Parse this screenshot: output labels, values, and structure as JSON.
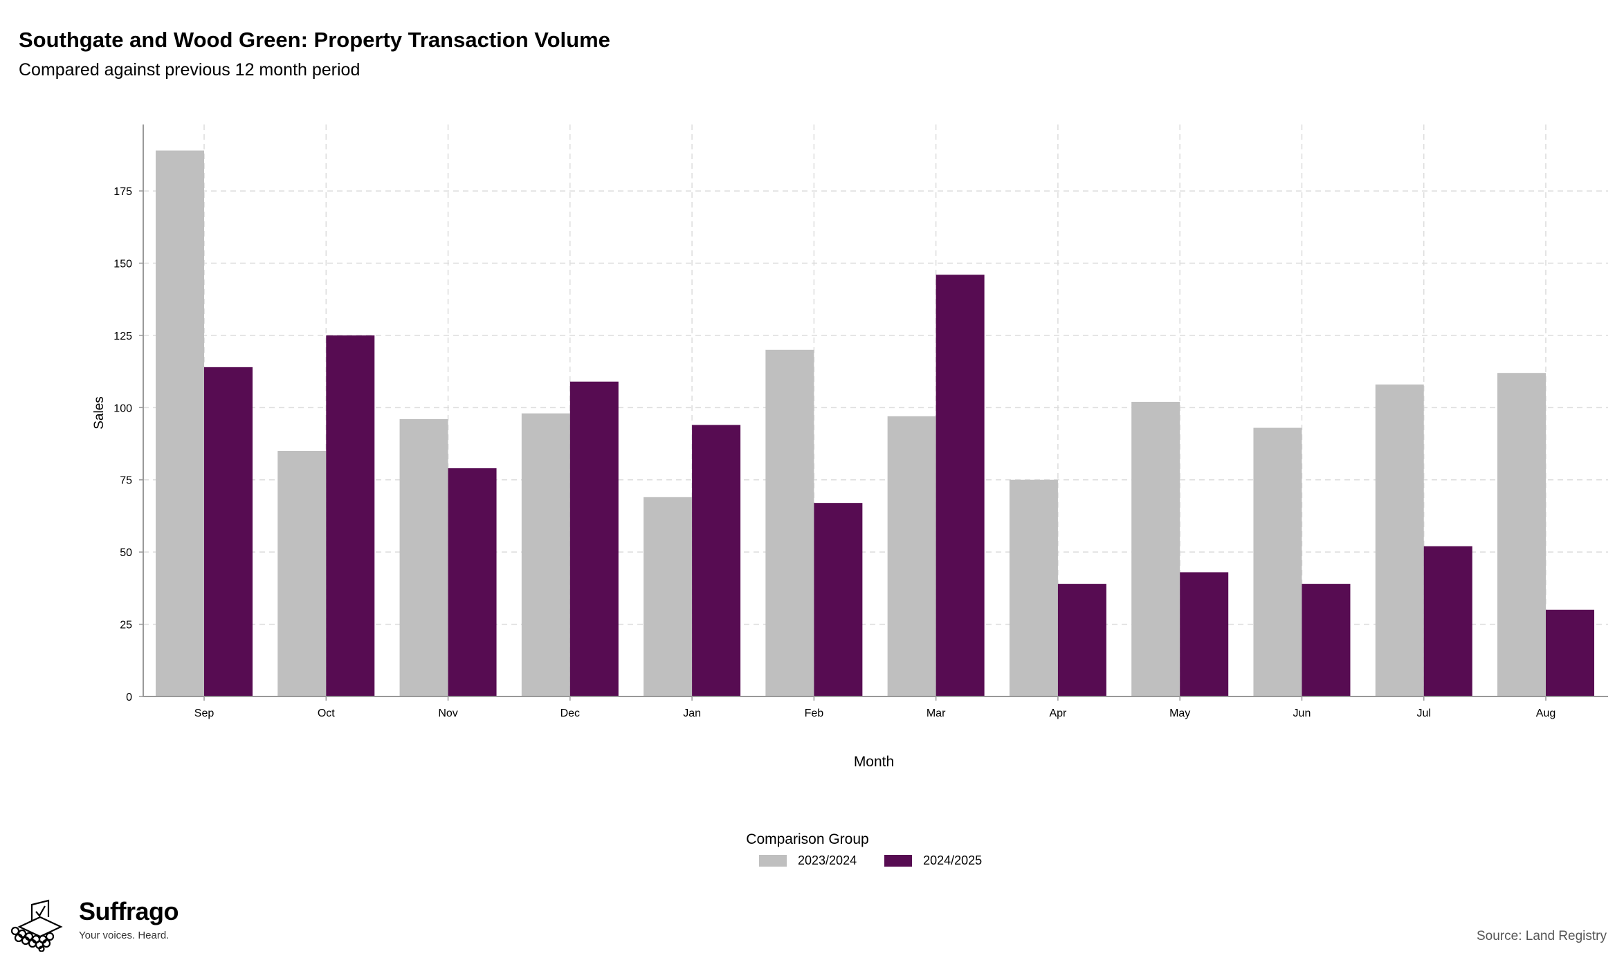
{
  "title": "Southgate and Wood Green: Property Transaction Volume",
  "subtitle": "Compared against previous 12 month period",
  "chart_data": {
    "type": "bar",
    "categories": [
      "Sep",
      "Oct",
      "Nov",
      "Dec",
      "Jan",
      "Feb",
      "Mar",
      "Apr",
      "May",
      "Jun",
      "Jul",
      "Aug"
    ],
    "series": [
      {
        "name": "2023/2024",
        "color": "#bfbfbf",
        "values": [
          189,
          85,
          96,
          98,
          69,
          120,
          97,
          75,
          102,
          93,
          108,
          112
        ]
      },
      {
        "name": "2024/2025",
        "color": "#570c52",
        "values": [
          114,
          125,
          79,
          109,
          94,
          67,
          146,
          39,
          43,
          39,
          52,
          30
        ]
      }
    ],
    "xlabel": "Month",
    "ylabel": "Sales",
    "ylim": [
      0,
      198
    ],
    "yticks": [
      0,
      25,
      50,
      75,
      100,
      125,
      150,
      175
    ],
    "grid": true,
    "legend_title": "Comparison Group",
    "legend_position": "bottom"
  },
  "source": "Source: Land Registry",
  "logo": {
    "name": "Suffrago",
    "tagline": "Your voices. Heard.",
    "icon": "ballot-box-icon"
  }
}
